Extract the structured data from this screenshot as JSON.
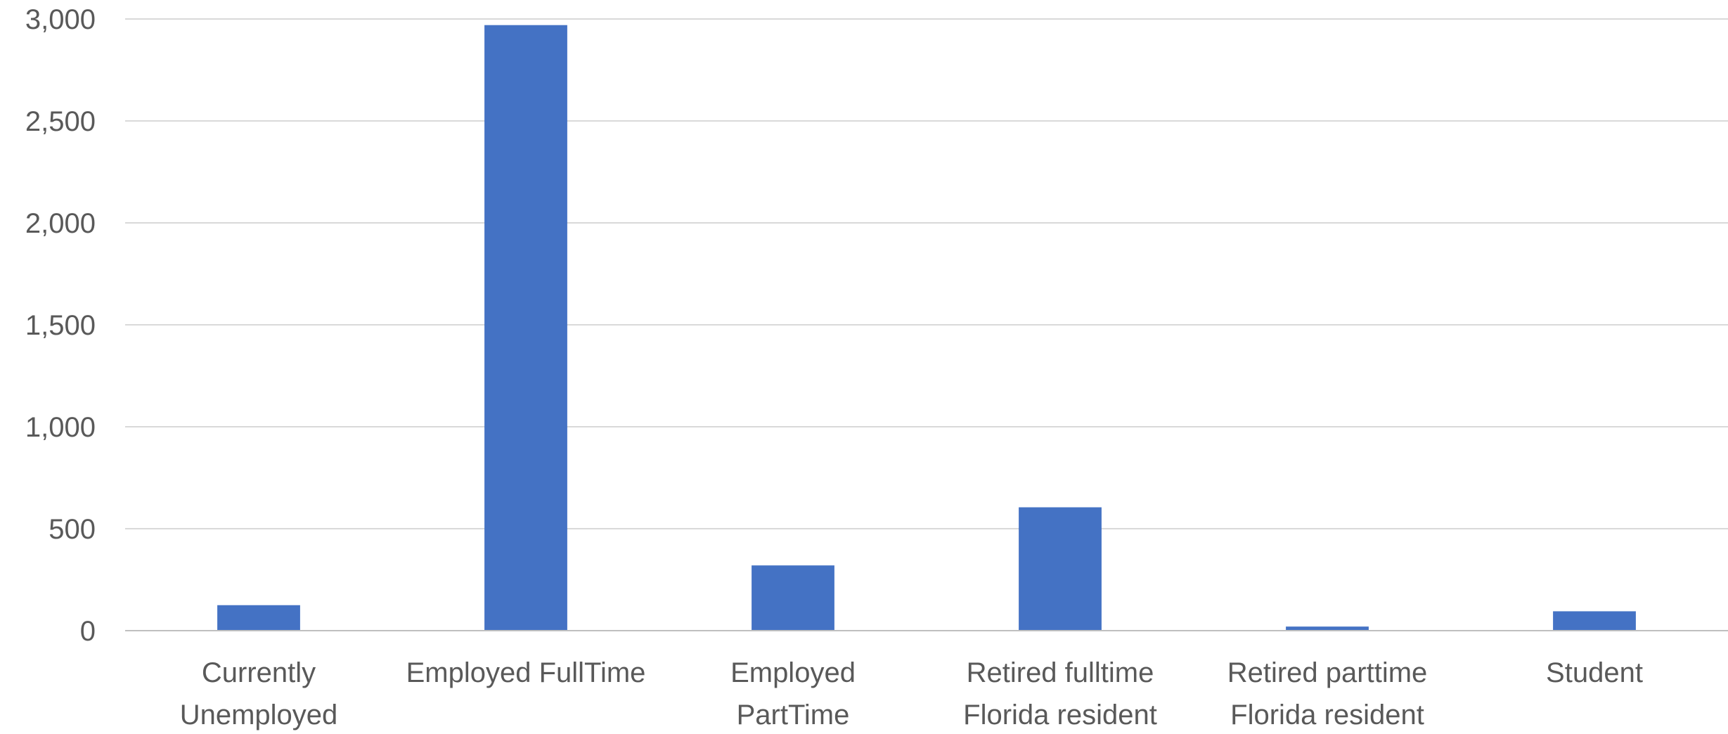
{
  "chart_data": {
    "type": "bar",
    "title": "",
    "xlabel": "",
    "ylabel": "",
    "categories": [
      [
        "Currently",
        "Unemployed"
      ],
      [
        "Employed FullTime"
      ],
      [
        "Employed",
        "PartTime"
      ],
      [
        "Retired fulltime",
        "Florida resident"
      ],
      [
        "Retired parttime",
        "Florida resident"
      ],
      [
        "Student"
      ]
    ],
    "values": [
      125,
      2970,
      320,
      605,
      20,
      95
    ],
    "ylim": [
      0,
      3000
    ],
    "yticks": [
      0,
      500,
      1000,
      1500,
      2000,
      2500,
      3000
    ],
    "ytick_labels": [
      "0",
      "500",
      "1,000",
      "1,500",
      "2,000",
      "2,500",
      "3,000"
    ],
    "grid": true,
    "legend": "none",
    "bar_color": "#4472C4"
  }
}
